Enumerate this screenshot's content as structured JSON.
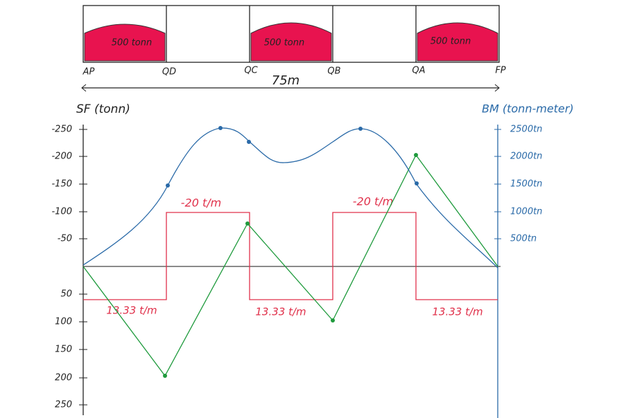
{
  "top_panel": {
    "holds": [
      "500 tonn",
      "500 tonn",
      "500 tonn"
    ],
    "stations": [
      "AP",
      "QD",
      "QC",
      "QB",
      "QA",
      "FP"
    ],
    "length": "75m"
  },
  "diagram": {
    "left_axis": {
      "title": "SF (tonn)",
      "ticks_up": [
        "-250",
        "-200",
        "-150",
        "-100",
        "-50"
      ],
      "ticks_down": [
        "50",
        "100",
        "150",
        "200",
        "250"
      ]
    },
    "right_axis": {
      "title": "BM (tonn-meter)",
      "ticks": [
        "2500tn",
        "2000tn",
        "1500tn",
        "1000tn",
        "500tn"
      ]
    },
    "annotations": {
      "loads_up": [
        "-20 t/m",
        "-20 t/m"
      ],
      "loads_down": [
        "13.33 t/m",
        "13.33 t/m",
        "13.33 t/m"
      ]
    }
  }
}
